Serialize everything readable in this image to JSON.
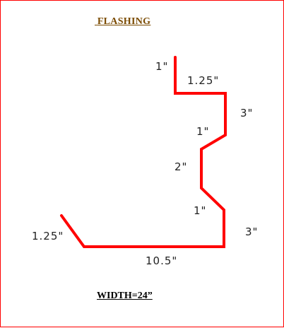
{
  "title": "FLASHING",
  "width_note": "WIDTH=24”",
  "colors": {
    "profile": "#ff0000",
    "border": "#ff0000",
    "title": "#7a4a00"
  },
  "dimensions": {
    "top_flange": "1\"",
    "top_return": "1.25\"",
    "upper_riser": "3\"",
    "upper_offset": "1\"",
    "middle_riser": "2\"",
    "lower_offset": "1\"",
    "lower_riser": "3\"",
    "base": "10.5\"",
    "hem": "1.25\""
  }
}
